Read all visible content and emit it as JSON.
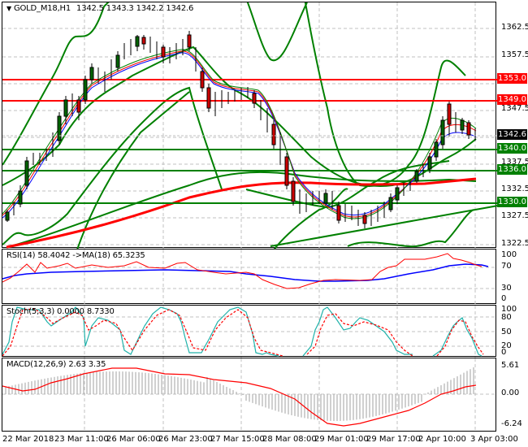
{
  "chart_header": {
    "symbol": "GOLD_M18,H1",
    "ohlc": "1342.5 1343.3 1342.2 1342.6",
    "arrow": "▼"
  },
  "main_axis": {
    "ticks": [
      "1362.5",
      "1357.5",
      "1347.5",
      "1337.5",
      "1332.5",
      "1327.5",
      "1322.5"
    ]
  },
  "levels": [
    {
      "value": "1353.0",
      "color": "#ff0000"
    },
    {
      "value": "1349.0",
      "color": "#ff0000"
    },
    {
      "value": "1340.0",
      "color": "#008000"
    },
    {
      "value": "1336.0",
      "color": "#008000"
    },
    {
      "value": "1330.0",
      "color": "#008000"
    }
  ],
  "current_price": {
    "value": "1342.6",
    "color": "#000000"
  },
  "rsi": {
    "label": "RSI(14) 58.4042  ->MA(18) 65.3235",
    "ticks": [
      "100",
      "70",
      "30",
      "0"
    ]
  },
  "stoch": {
    "label": "Stoch(5,3,3) 0.0000 8.7330",
    "ticks": [
      "100",
      "80",
      "50",
      "20",
      "0"
    ]
  },
  "macd": {
    "label": "MACD(12,26,9) 2.63 3.35",
    "ticks": [
      "5.61",
      "0.00",
      "-6.24"
    ]
  },
  "time_axis": {
    "labels": [
      "22 Mar 2018",
      "23 Mar 11:00",
      "26 Mar 06:00",
      "26 Mar 23:00",
      "27 Mar 15:00",
      "28 Mar 08:00",
      "29 Mar 01:00",
      "29 Mar 17:00",
      "2 Apr 10:00",
      "3 Apr 03:00"
    ]
  },
  "chart_data": [
    {
      "type": "candlestick",
      "title": "GOLD_M18,H1",
      "ohlc_last": {
        "open": 1342.5,
        "high": 1343.3,
        "low": 1342.2,
        "close": 1342.6
      },
      "ylim": [
        1321,
        1366
      ],
      "x": [
        "22 Mar 2018",
        "23 Mar 11:00",
        "26 Mar 06:00",
        "26 Mar 23:00",
        "27 Mar 15:00",
        "28 Mar 08:00",
        "29 Mar 01:00",
        "29 Mar 17:00",
        "2 Apr 10:00",
        "3 Apr 03:00"
      ],
      "close_approx": [
        1327,
        1344,
        1357,
        1359,
        1350,
        1330,
        1328,
        1334,
        1349,
        1342.6
      ],
      "horizontal_levels": [
        1353.0,
        1349.0,
        1340.0,
        1336.0,
        1330.0
      ],
      "overlays": [
        "Bollinger Bands (green)",
        "Moving Average 200 (red, thick)",
        "Moving Average (green, thick)",
        "fast MAs (red, blue, green thin)",
        "trendline (green)"
      ],
      "grid": true
    },
    {
      "type": "line",
      "title": "RSI(14) 58.4042 ->MA(18) 65.3235",
      "series": [
        {
          "name": "RSI(14)",
          "color": "#ff0000",
          "last": 58.4042
        },
        {
          "name": "MA(18)",
          "color": "#0000ff",
          "last": 65.3235
        }
      ],
      "ylim": [
        0,
        100
      ],
      "levels": [
        70,
        30
      ]
    },
    {
      "type": "line",
      "title": "Stoch(5,3,3) 0.0000 8.7330",
      "series": [
        {
          "name": "%K",
          "color": "#20b2aa",
          "last": 0.0
        },
        {
          "name": "%D",
          "color": "#ff0000",
          "last": 8.733
        }
      ],
      "ylim": [
        0,
        100
      ],
      "levels": [
        80,
        50,
        20
      ]
    },
    {
      "type": "bar",
      "title": "MACD(12,26,9) 2.63 3.35",
      "series": [
        {
          "name": "MACD histogram",
          "color": "#c0c0c0",
          "last": 2.63
        },
        {
          "name": "Signal",
          "color": "#ff0000",
          "last": 3.35
        }
      ],
      "ylim": [
        -6.24,
        5.61
      ]
    }
  ]
}
